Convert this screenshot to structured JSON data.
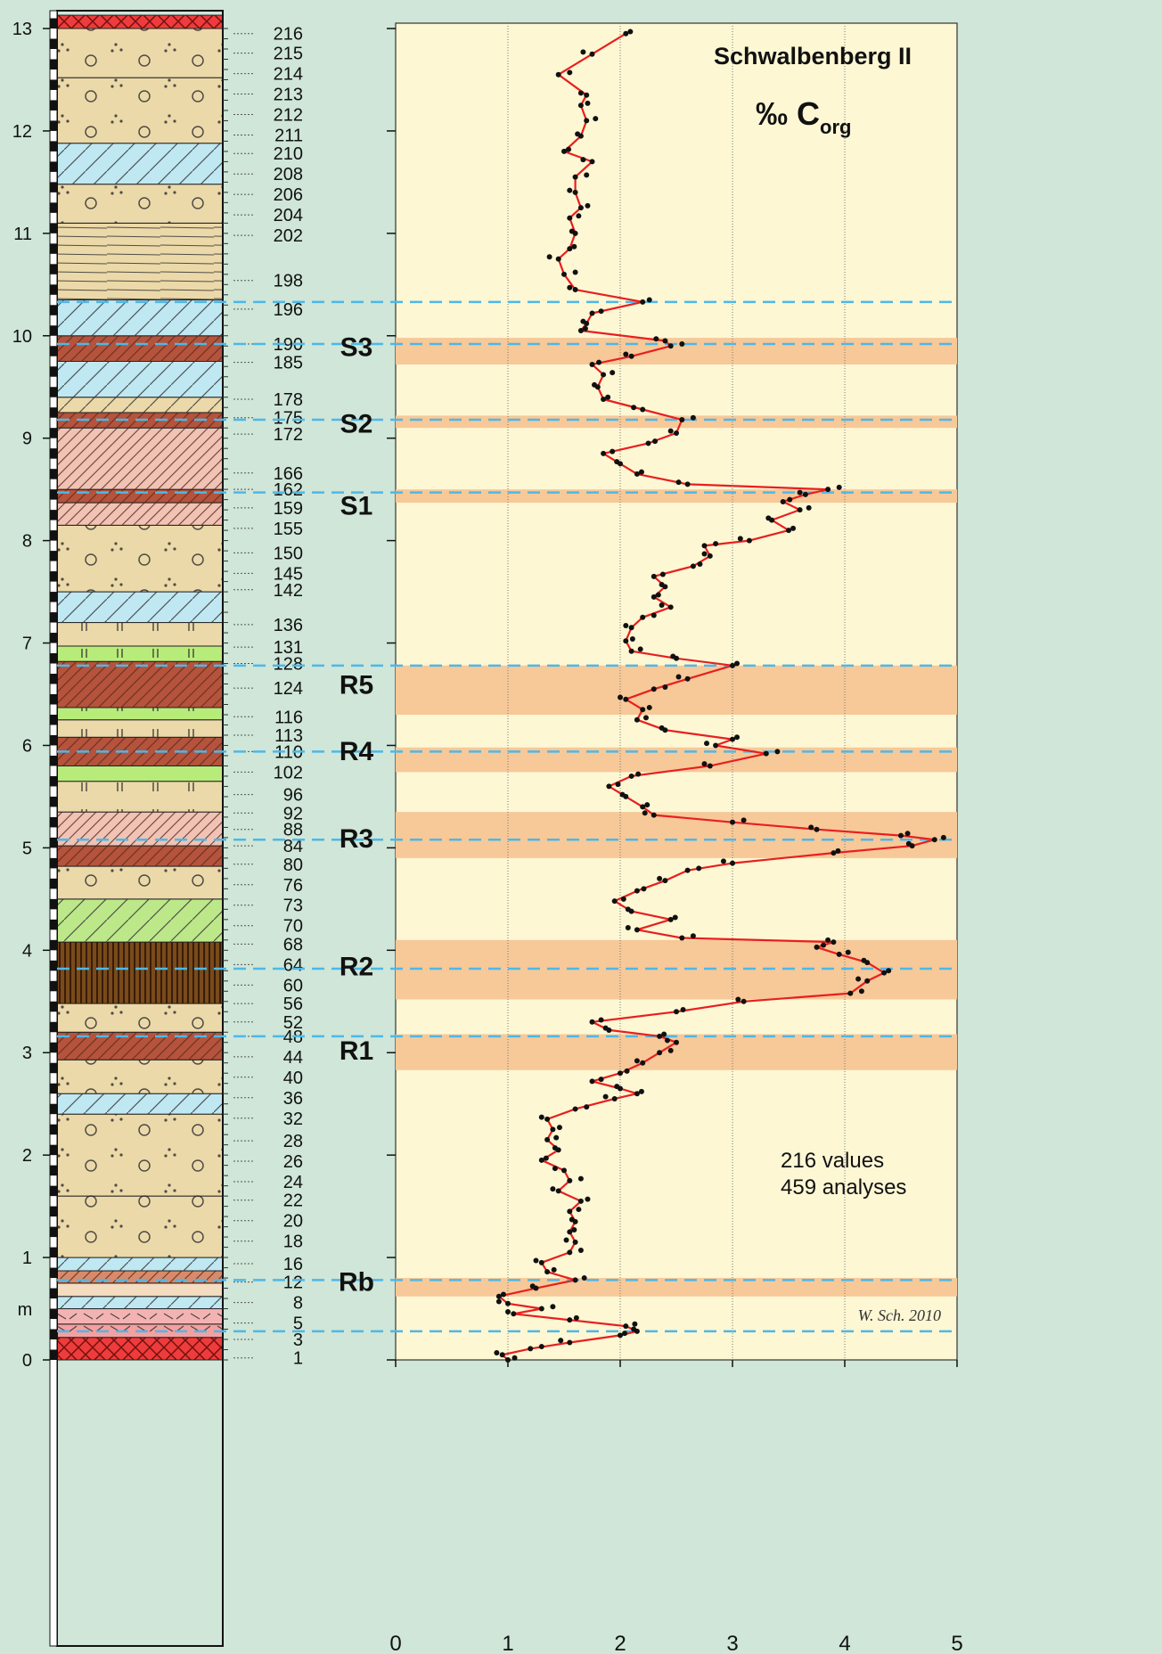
{
  "chart_data": {
    "type": "line",
    "title": "Schwalbenberg II",
    "subtitle": "‰ C",
    "subtitle_sub": "org",
    "xlabel": "",
    "ylabel": "m",
    "xlim": [
      0,
      5
    ],
    "ylim": [
      0,
      13
    ],
    "x_ticks": [
      "0",
      "1",
      "2",
      "3",
      "4",
      "5"
    ],
    "y_ticks": [
      "0",
      "1",
      "2",
      "3",
      "4",
      "5",
      "6",
      "7",
      "8",
      "9",
      "10",
      "11",
      "12",
      "13"
    ],
    "grid": true,
    "note_values": "216 values",
    "note_analyses": "459 analyses",
    "credit": "W. Sch. 2010",
    "series_color": "#e81f1f",
    "band_color": "#f7c898",
    "background": "#fdf7d4",
    "dashed_line_color": "#4db8e8",
    "sample_labels": [
      {
        "label": "216",
        "y": 12.95
      },
      {
        "label": "215",
        "y": 12.76
      },
      {
        "label": "214",
        "y": 12.56
      },
      {
        "label": "213",
        "y": 12.36
      },
      {
        "label": "212",
        "y": 12.16
      },
      {
        "label": "211",
        "y": 11.96
      },
      {
        "label": "210",
        "y": 11.78
      },
      {
        "label": "208",
        "y": 11.58
      },
      {
        "label": "206",
        "y": 11.38
      },
      {
        "label": "204",
        "y": 11.18
      },
      {
        "label": "202",
        "y": 10.98
      },
      {
        "label": "198",
        "y": 10.54
      },
      {
        "label": "196",
        "y": 10.26
      },
      {
        "label": "190",
        "y": 9.92
      },
      {
        "label": "185",
        "y": 9.74
      },
      {
        "label": "178",
        "y": 9.38
      },
      {
        "label": "175",
        "y": 9.2
      },
      {
        "label": "172",
        "y": 9.04
      },
      {
        "label": "166",
        "y": 8.66
      },
      {
        "label": "162",
        "y": 8.5
      },
      {
        "label": "159",
        "y": 8.32
      },
      {
        "label": "155",
        "y": 8.12
      },
      {
        "label": "150",
        "y": 7.88
      },
      {
        "label": "145",
        "y": 7.68
      },
      {
        "label": "142",
        "y": 7.52
      },
      {
        "label": "136",
        "y": 7.18
      },
      {
        "label": "131",
        "y": 6.96
      },
      {
        "label": "128",
        "y": 6.8
      },
      {
        "label": "124",
        "y": 6.56
      },
      {
        "label": "116",
        "y": 6.28
      },
      {
        "label": "113",
        "y": 6.1
      },
      {
        "label": "110",
        "y": 5.94
      },
      {
        "label": "102",
        "y": 5.74
      },
      {
        "label": "96",
        "y": 5.52
      },
      {
        "label": "92",
        "y": 5.34
      },
      {
        "label": "88",
        "y": 5.18
      },
      {
        "label": "84",
        "y": 5.02
      },
      {
        "label": "80",
        "y": 4.84
      },
      {
        "label": "76",
        "y": 4.64
      },
      {
        "label": "73",
        "y": 4.44
      },
      {
        "label": "70",
        "y": 4.24
      },
      {
        "label": "68",
        "y": 4.06
      },
      {
        "label": "64",
        "y": 3.86
      },
      {
        "label": "60",
        "y": 3.66
      },
      {
        "label": "56",
        "y": 3.48
      },
      {
        "label": "52",
        "y": 3.3
      },
      {
        "label": "48",
        "y": 3.16
      },
      {
        "label": "44",
        "y": 2.96
      },
      {
        "label": "40",
        "y": 2.76
      },
      {
        "label": "36",
        "y": 2.56
      },
      {
        "label": "32",
        "y": 2.36
      },
      {
        "label": "28",
        "y": 2.14
      },
      {
        "label": "26",
        "y": 1.94
      },
      {
        "label": "24",
        "y": 1.74
      },
      {
        "label": "22",
        "y": 1.56
      },
      {
        "label": "20",
        "y": 1.36
      },
      {
        "label": "18",
        "y": 1.16
      },
      {
        "label": "16",
        "y": 0.94
      },
      {
        "label": "12",
        "y": 0.76
      },
      {
        "label": "8",
        "y": 0.56
      },
      {
        "label": "5",
        "y": 0.36
      },
      {
        "label": "3",
        "y": 0.2
      },
      {
        "label": "1",
        "y": 0.02
      }
    ],
    "horizons": [
      {
        "label": "S3",
        "y": 9.9,
        "band": [
          9.72,
          9.98
        ],
        "dashed": 9.92
      },
      {
        "label": "S2",
        "y": 9.15,
        "band": [
          9.1,
          9.22
        ],
        "dashed": 9.18
      },
      {
        "label": "S1",
        "y": 8.35,
        "band": [
          8.37,
          8.5
        ],
        "dashed": 8.47
      },
      {
        "label": "R5",
        "y": 6.6,
        "band": [
          6.3,
          6.78
        ],
        "dashed": 6.78
      },
      {
        "label": "R4",
        "y": 5.95,
        "band": [
          5.74,
          5.98
        ],
        "dashed": 5.94
      },
      {
        "label": "R3",
        "y": 5.1,
        "band": [
          4.9,
          5.35
        ],
        "dashed": 5.08
      },
      {
        "label": "R2",
        "y": 3.85,
        "band": [
          3.52,
          4.1
        ],
        "dashed": 3.82
      },
      {
        "label": "R1",
        "y": 3.03,
        "band": [
          2.83,
          3.18
        ],
        "dashed": 3.16
      },
      {
        "label": "Rb",
        "y": 0.77,
        "band": [
          0.62,
          0.8
        ],
        "dashed": 0.78
      }
    ],
    "extra_dashed": [
      10.33,
      0.28
    ],
    "series": [
      {
        "points": [
          [
            1.0,
            0.0
          ],
          [
            0.95,
            0.05
          ],
          [
            1.2,
            0.11
          ],
          [
            1.55,
            0.17
          ],
          [
            2.0,
            0.24
          ],
          [
            2.15,
            0.28
          ],
          [
            2.05,
            0.33
          ],
          [
            1.55,
            0.39
          ],
          [
            1.05,
            0.45
          ],
          [
            1.3,
            0.5
          ],
          [
            1.0,
            0.55
          ],
          [
            0.92,
            0.62
          ],
          [
            1.25,
            0.7
          ],
          [
            1.6,
            0.78
          ],
          [
            1.35,
            0.86
          ],
          [
            1.3,
            0.95
          ],
          [
            1.55,
            1.05
          ],
          [
            1.6,
            1.15
          ],
          [
            1.55,
            1.25
          ],
          [
            1.6,
            1.35
          ],
          [
            1.55,
            1.45
          ],
          [
            1.65,
            1.55
          ],
          [
            1.45,
            1.65
          ],
          [
            1.55,
            1.75
          ],
          [
            1.5,
            1.85
          ],
          [
            1.3,
            1.95
          ],
          [
            1.45,
            2.05
          ],
          [
            1.35,
            2.15
          ],
          [
            1.4,
            2.25
          ],
          [
            1.35,
            2.35
          ],
          [
            1.6,
            2.45
          ],
          [
            1.95,
            2.55
          ],
          [
            2.15,
            2.6
          ],
          [
            2.0,
            2.65
          ],
          [
            1.75,
            2.72
          ],
          [
            2.0,
            2.8
          ],
          [
            2.2,
            2.9
          ],
          [
            2.35,
            3.0
          ],
          [
            2.5,
            3.1
          ],
          [
            2.35,
            3.16
          ],
          [
            1.9,
            3.22
          ],
          [
            1.75,
            3.3
          ],
          [
            2.5,
            3.4
          ],
          [
            3.1,
            3.5
          ],
          [
            4.05,
            3.58
          ],
          [
            4.2,
            3.7
          ],
          [
            4.35,
            3.78
          ],
          [
            4.2,
            3.88
          ],
          [
            3.95,
            3.96
          ],
          [
            3.75,
            4.03
          ],
          [
            3.9,
            4.08
          ],
          [
            2.55,
            4.12
          ],
          [
            2.15,
            4.2
          ],
          [
            2.45,
            4.3
          ],
          [
            2.1,
            4.38
          ],
          [
            1.95,
            4.48
          ],
          [
            2.15,
            4.58
          ],
          [
            2.4,
            4.68
          ],
          [
            2.6,
            4.78
          ],
          [
            3.0,
            4.85
          ],
          [
            3.9,
            4.95
          ],
          [
            4.6,
            5.02
          ],
          [
            4.8,
            5.08
          ],
          [
            4.5,
            5.12
          ],
          [
            3.75,
            5.18
          ],
          [
            3.0,
            5.25
          ],
          [
            2.3,
            5.32
          ],
          [
            2.2,
            5.4
          ],
          [
            2.05,
            5.5
          ],
          [
            1.9,
            5.6
          ],
          [
            2.1,
            5.7
          ],
          [
            2.8,
            5.8
          ],
          [
            3.3,
            5.92
          ],
          [
            2.85,
            6.0
          ],
          [
            3.0,
            6.06
          ],
          [
            2.4,
            6.15
          ],
          [
            2.15,
            6.25
          ],
          [
            2.2,
            6.35
          ],
          [
            2.05,
            6.45
          ],
          [
            2.3,
            6.55
          ],
          [
            2.6,
            6.65
          ],
          [
            3.0,
            6.78
          ],
          [
            2.5,
            6.85
          ],
          [
            2.1,
            6.92
          ],
          [
            2.05,
            7.02
          ],
          [
            2.1,
            7.15
          ],
          [
            2.2,
            7.25
          ],
          [
            2.45,
            7.35
          ],
          [
            2.3,
            7.45
          ],
          [
            2.4,
            7.55
          ],
          [
            2.3,
            7.65
          ],
          [
            2.65,
            7.75
          ],
          [
            2.8,
            7.85
          ],
          [
            2.75,
            7.95
          ],
          [
            3.15,
            8.0
          ],
          [
            3.5,
            8.1
          ],
          [
            3.35,
            8.2
          ],
          [
            3.6,
            8.3
          ],
          [
            3.45,
            8.38
          ],
          [
            3.65,
            8.45
          ],
          [
            3.85,
            8.5
          ],
          [
            2.6,
            8.55
          ],
          [
            2.15,
            8.65
          ],
          [
            2.0,
            8.75
          ],
          [
            1.85,
            8.85
          ],
          [
            2.25,
            8.95
          ],
          [
            2.5,
            9.05
          ],
          [
            2.55,
            9.18
          ],
          [
            2.2,
            9.28
          ],
          [
            1.85,
            9.38
          ],
          [
            1.8,
            9.5
          ],
          [
            1.85,
            9.62
          ],
          [
            1.75,
            9.72
          ],
          [
            2.1,
            9.8
          ],
          [
            2.45,
            9.9
          ],
          [
            2.4,
            9.95
          ],
          [
            1.65,
            10.05
          ],
          [
            1.7,
            10.12
          ],
          [
            1.75,
            10.22
          ],
          [
            2.2,
            10.33
          ],
          [
            1.6,
            10.45
          ],
          [
            1.5,
            10.6
          ],
          [
            1.45,
            10.75
          ],
          [
            1.55,
            10.85
          ],
          [
            1.6,
            11.0
          ],
          [
            1.55,
            11.15
          ],
          [
            1.65,
            11.25
          ],
          [
            1.6,
            11.4
          ],
          [
            1.6,
            11.55
          ],
          [
            1.75,
            11.7
          ],
          [
            1.5,
            11.8
          ],
          [
            1.65,
            11.95
          ],
          [
            1.7,
            12.1
          ],
          [
            1.65,
            12.25
          ],
          [
            1.7,
            12.35
          ],
          [
            1.45,
            12.55
          ],
          [
            1.75,
            12.75
          ],
          [
            2.05,
            12.95
          ]
        ]
      }
    ],
    "scatter_offsets_x": [
      0.06,
      -0.05,
      0.1,
      -0.08,
      0.04,
      -0.03,
      0.08
    ]
  },
  "lithology": [
    {
      "from": 0.0,
      "to": 0.22,
      "fill": "#ef3b3b",
      "pattern": "cross"
    },
    {
      "from": 0.22,
      "to": 0.35,
      "fill": "#f4a0a0",
      "pattern": "dash"
    },
    {
      "from": 0.35,
      "to": 0.5,
      "fill": "#f4b3b3",
      "pattern": "dash"
    },
    {
      "from": 0.5,
      "to": 0.62,
      "fill": "#bfe8f2",
      "pattern": "diag"
    },
    {
      "from": 0.62,
      "to": 0.75,
      "fill": "#f3dcbf",
      "pattern": "none"
    },
    {
      "from": 0.75,
      "to": 0.87,
      "fill": "#d98a6a",
      "pattern": "hatch"
    },
    {
      "from": 0.87,
      "to": 1.0,
      "fill": "#bfe8f2",
      "pattern": "diag"
    },
    {
      "from": 1.0,
      "to": 1.6,
      "fill": "#ecd9a9",
      "pattern": "dots"
    },
    {
      "from": 1.6,
      "to": 2.4,
      "fill": "#ecd9a9",
      "pattern": "dots"
    },
    {
      "from": 2.4,
      "to": 2.6,
      "fill": "#bfe8f2",
      "pattern": "diag"
    },
    {
      "from": 2.6,
      "to": 2.93,
      "fill": "#ecd9a9",
      "pattern": "dots"
    },
    {
      "from": 2.93,
      "to": 3.2,
      "fill": "#b5533c",
      "pattern": "hatch"
    },
    {
      "from": 3.2,
      "to": 3.48,
      "fill": "#ecd9a9",
      "pattern": "dots"
    },
    {
      "from": 3.48,
      "to": 4.08,
      "fill": "#7a4a1a",
      "pattern": "vert"
    },
    {
      "from": 4.08,
      "to": 4.5,
      "fill": "#bde88a",
      "pattern": "diag"
    },
    {
      "from": 4.5,
      "to": 4.82,
      "fill": "#ecd9a9",
      "pattern": "dots"
    },
    {
      "from": 4.82,
      "to": 5.02,
      "fill": "#b5533c",
      "pattern": "hatch"
    },
    {
      "from": 5.02,
      "to": 5.35,
      "fill": "#f0c3b5",
      "pattern": "hatch"
    },
    {
      "from": 5.35,
      "to": 5.65,
      "fill": "#ecd9a9",
      "pattern": "vbar"
    },
    {
      "from": 5.65,
      "to": 5.8,
      "fill": "#b8ec7a",
      "pattern": "vbar"
    },
    {
      "from": 5.8,
      "to": 6.08,
      "fill": "#b5533c",
      "pattern": "hatch"
    },
    {
      "from": 6.08,
      "to": 6.25,
      "fill": "#ecd9a9",
      "pattern": "vbar"
    },
    {
      "from": 6.25,
      "to": 6.37,
      "fill": "#b8ec7a",
      "pattern": "vbar"
    },
    {
      "from": 6.37,
      "to": 6.82,
      "fill": "#b5533c",
      "pattern": "hatch"
    },
    {
      "from": 6.82,
      "to": 6.97,
      "fill": "#b8ec7a",
      "pattern": "vbar"
    },
    {
      "from": 6.97,
      "to": 7.2,
      "fill": "#ecd9a9",
      "pattern": "vbar"
    },
    {
      "from": 7.2,
      "to": 7.5,
      "fill": "#bfe8f2",
      "pattern": "diag"
    },
    {
      "from": 7.5,
      "to": 8.15,
      "fill": "#ecd9a9",
      "pattern": "dots"
    },
    {
      "from": 8.15,
      "to": 8.37,
      "fill": "#f0c3b5",
      "pattern": "hatch"
    },
    {
      "from": 8.37,
      "to": 8.5,
      "fill": "#b5533c",
      "pattern": "hatch"
    },
    {
      "from": 8.5,
      "to": 9.1,
      "fill": "#f0c3b5",
      "pattern": "hatch"
    },
    {
      "from": 9.1,
      "to": 9.25,
      "fill": "#b5533c",
      "pattern": "hatch"
    },
    {
      "from": 9.25,
      "to": 9.4,
      "fill": "#ecd9a9",
      "pattern": "diag"
    },
    {
      "from": 9.4,
      "to": 9.75,
      "fill": "#bfe8f2",
      "pattern": "diag"
    },
    {
      "from": 9.75,
      "to": 10.0,
      "fill": "#b5533c",
      "pattern": "hatch"
    },
    {
      "from": 10.0,
      "to": 10.35,
      "fill": "#bfe8f2",
      "pattern": "diag"
    },
    {
      "from": 10.35,
      "to": 11.1,
      "fill": "#ecd9a9",
      "pattern": "lines"
    },
    {
      "from": 11.1,
      "to": 11.48,
      "fill": "#ecd9a9",
      "pattern": "dots"
    },
    {
      "from": 11.48,
      "to": 11.88,
      "fill": "#bfe8f2",
      "pattern": "diag"
    },
    {
      "from": 11.88,
      "to": 12.52,
      "fill": "#ecd9a9",
      "pattern": "dots"
    },
    {
      "from": 12.52,
      "to": 13.0,
      "fill": "#ecd9a9",
      "pattern": "dots"
    },
    {
      "from": 13.0,
      "to": 13.13,
      "fill": "#ef3b3b",
      "pattern": "cross"
    }
  ]
}
